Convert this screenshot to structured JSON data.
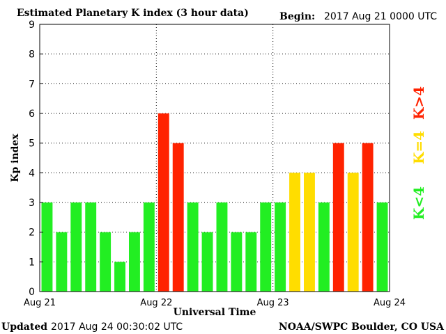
{
  "header": {
    "title": "Estimated Planetary K index (3 hour data)",
    "begin_label": "Begin:",
    "begin_value": "2017 Aug 21 0000 UTC"
  },
  "footer": {
    "updated_label": "Updated",
    "updated_value": "2017 Aug 24 00:30:02 UTC",
    "source": "NOAA/SWPC Boulder, CO USA"
  },
  "legend": {
    "low": "K<4",
    "mid": "K=4",
    "high": "K>4"
  },
  "colors": {
    "low": "#22ee22",
    "mid": "#ffdd00",
    "high": "#ff2200",
    "grid": "#000000",
    "axis": "#000000"
  },
  "chart_data": {
    "type": "bar",
    "title": "Estimated Planetary K index (3 hour data)",
    "xlabel": "Universal Time",
    "ylabel": "Kp index",
    "ylim": [
      0,
      9
    ],
    "yticks": [
      "0",
      "1",
      "2",
      "3",
      "4",
      "5",
      "6",
      "7",
      "8",
      "9"
    ],
    "xticks": [
      "Aug 21",
      "Aug 22",
      "Aug 23",
      "Aug 24"
    ],
    "grid": true,
    "values": [
      3,
      2,
      3,
      3,
      2,
      1,
      2,
      3,
      6,
      5,
      3,
      2,
      3,
      2,
      2,
      3,
      3,
      4,
      4,
      3,
      5,
      4,
      5,
      3
    ]
  }
}
